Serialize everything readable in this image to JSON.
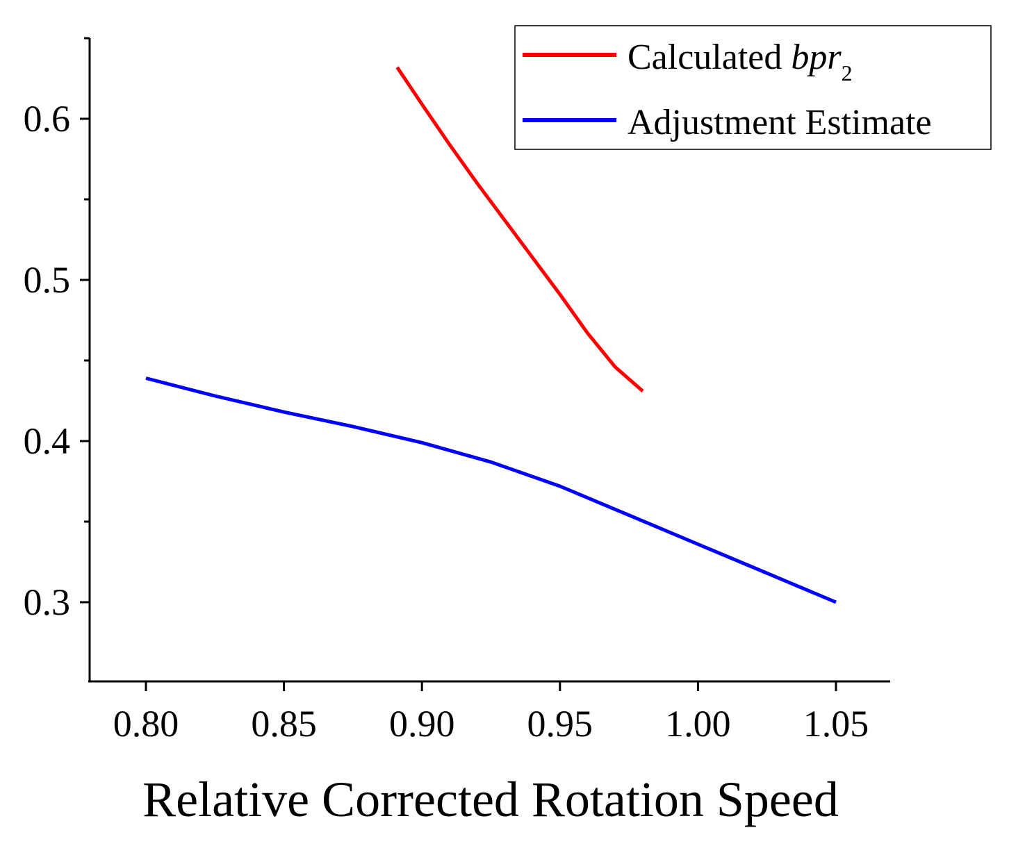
{
  "chart_data": {
    "type": "line",
    "title": "",
    "xlabel": "Relative Corrected Rotation Speed",
    "ylabel": "",
    "xlim": [
      0.78,
      1.07
    ],
    "ylim": [
      0.25,
      0.65
    ],
    "x_ticks": [
      0.8,
      0.85,
      0.9,
      0.95,
      1.0,
      1.05
    ],
    "x_tick_labels": [
      "0.80",
      "0.85",
      "0.90",
      "0.95",
      "1.00",
      "1.05"
    ],
    "y_ticks": [
      0.3,
      0.4,
      0.5,
      0.6
    ],
    "y_tick_labels": [
      "0.3",
      "0.4",
      "0.5",
      "0.6"
    ],
    "x_minor_step": 0.025,
    "y_minor_step": 0.05,
    "grid": false,
    "legend_position": "top-right",
    "series": [
      {
        "name": "Calculated bpr2",
        "label_main": "Calculated ",
        "label_italic": "bpr",
        "label_subscript": "2",
        "color": "#ff0000",
        "x": [
          0.891,
          0.9,
          0.91,
          0.92,
          0.93,
          0.94,
          0.95,
          0.96,
          0.97,
          0.98
        ],
        "y": [
          0.632,
          0.609,
          0.584,
          0.56,
          0.537,
          0.514,
          0.491,
          0.467,
          0.446,
          0.431
        ]
      },
      {
        "name": "Adjustment Estimate",
        "label_main": "Adjustment Estimate",
        "label_italic": "",
        "label_subscript": "",
        "color": "#0000ff",
        "x": [
          0.8,
          0.825,
          0.85,
          0.875,
          0.9,
          0.925,
          0.95,
          0.975,
          1.0,
          1.025,
          1.05
        ],
        "y": [
          0.439,
          0.428,
          0.418,
          0.409,
          0.399,
          0.387,
          0.372,
          0.354,
          0.336,
          0.318,
          0.3
        ]
      }
    ]
  }
}
